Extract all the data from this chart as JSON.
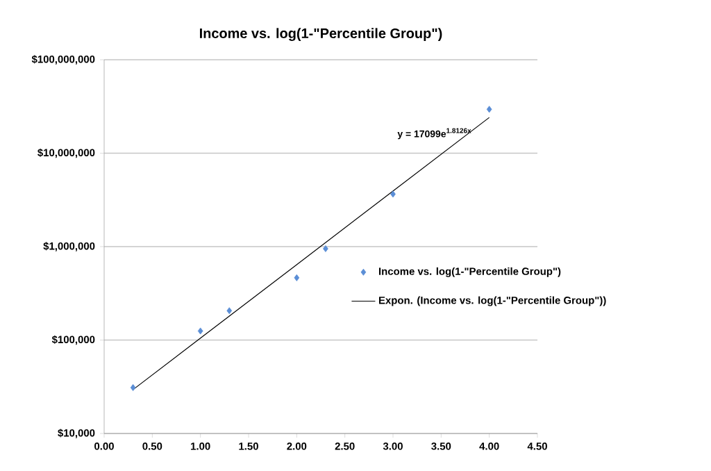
{
  "chart_data": {
    "type": "scatter",
    "title": "Income vs. log(1-\"Percentile Group\")",
    "log": "y",
    "grid": "y",
    "legend": "right",
    "marker": "diamond",
    "xlim": [
      0,
      4.5
    ],
    "ylim": [
      10000,
      100000000
    ],
    "xticks": [
      {
        "value": 0,
        "label": "0.00"
      },
      {
        "value": 0.5,
        "label": "0.50"
      },
      {
        "value": 1,
        "label": "1.00"
      },
      {
        "value": 1.5,
        "label": "1.50"
      },
      {
        "value": 2,
        "label": "2.00"
      },
      {
        "value": 2.5,
        "label": "2.50"
      },
      {
        "value": 3,
        "label": "3.00"
      },
      {
        "value": 3.5,
        "label": "3.50"
      },
      {
        "value": 4,
        "label": "4.00"
      },
      {
        "value": 4.5,
        "label": "4.50"
      }
    ],
    "yticks": [
      {
        "value": 10000,
        "label": "$10,000"
      },
      {
        "value": 100000,
        "label": "$100,000"
      },
      {
        "value": 1000000,
        "label": "$1,000,000"
      },
      {
        "value": 10000000,
        "label": "$10,000,000"
      },
      {
        "value": 100000000,
        "label": "$100,000,000"
      }
    ],
    "series": [
      {
        "name": "Income vs. log(1-\"Percentile Group\")",
        "color": "#5b8ed6",
        "x": [
          0.3,
          1.0,
          1.3,
          2.0,
          2.3,
          3.0,
          4.0
        ],
        "values": [
          31000,
          125000,
          206000,
          464000,
          950000,
          3650000,
          29500000
        ]
      },
      {
        "name": "Expon. (Income vs. log(1-\"Percentile Group\"))",
        "type": "line",
        "color": "#000000",
        "marker": "none",
        "x": [
          0.3,
          1.0,
          2.0,
          3.0,
          4.0
        ],
        "values": [
          29455,
          104755,
          641760,
          3931700,
          24085000
        ]
      }
    ],
    "annotations": [
      "y = 17099e$^{1.8126x}$"
    ]
  }
}
